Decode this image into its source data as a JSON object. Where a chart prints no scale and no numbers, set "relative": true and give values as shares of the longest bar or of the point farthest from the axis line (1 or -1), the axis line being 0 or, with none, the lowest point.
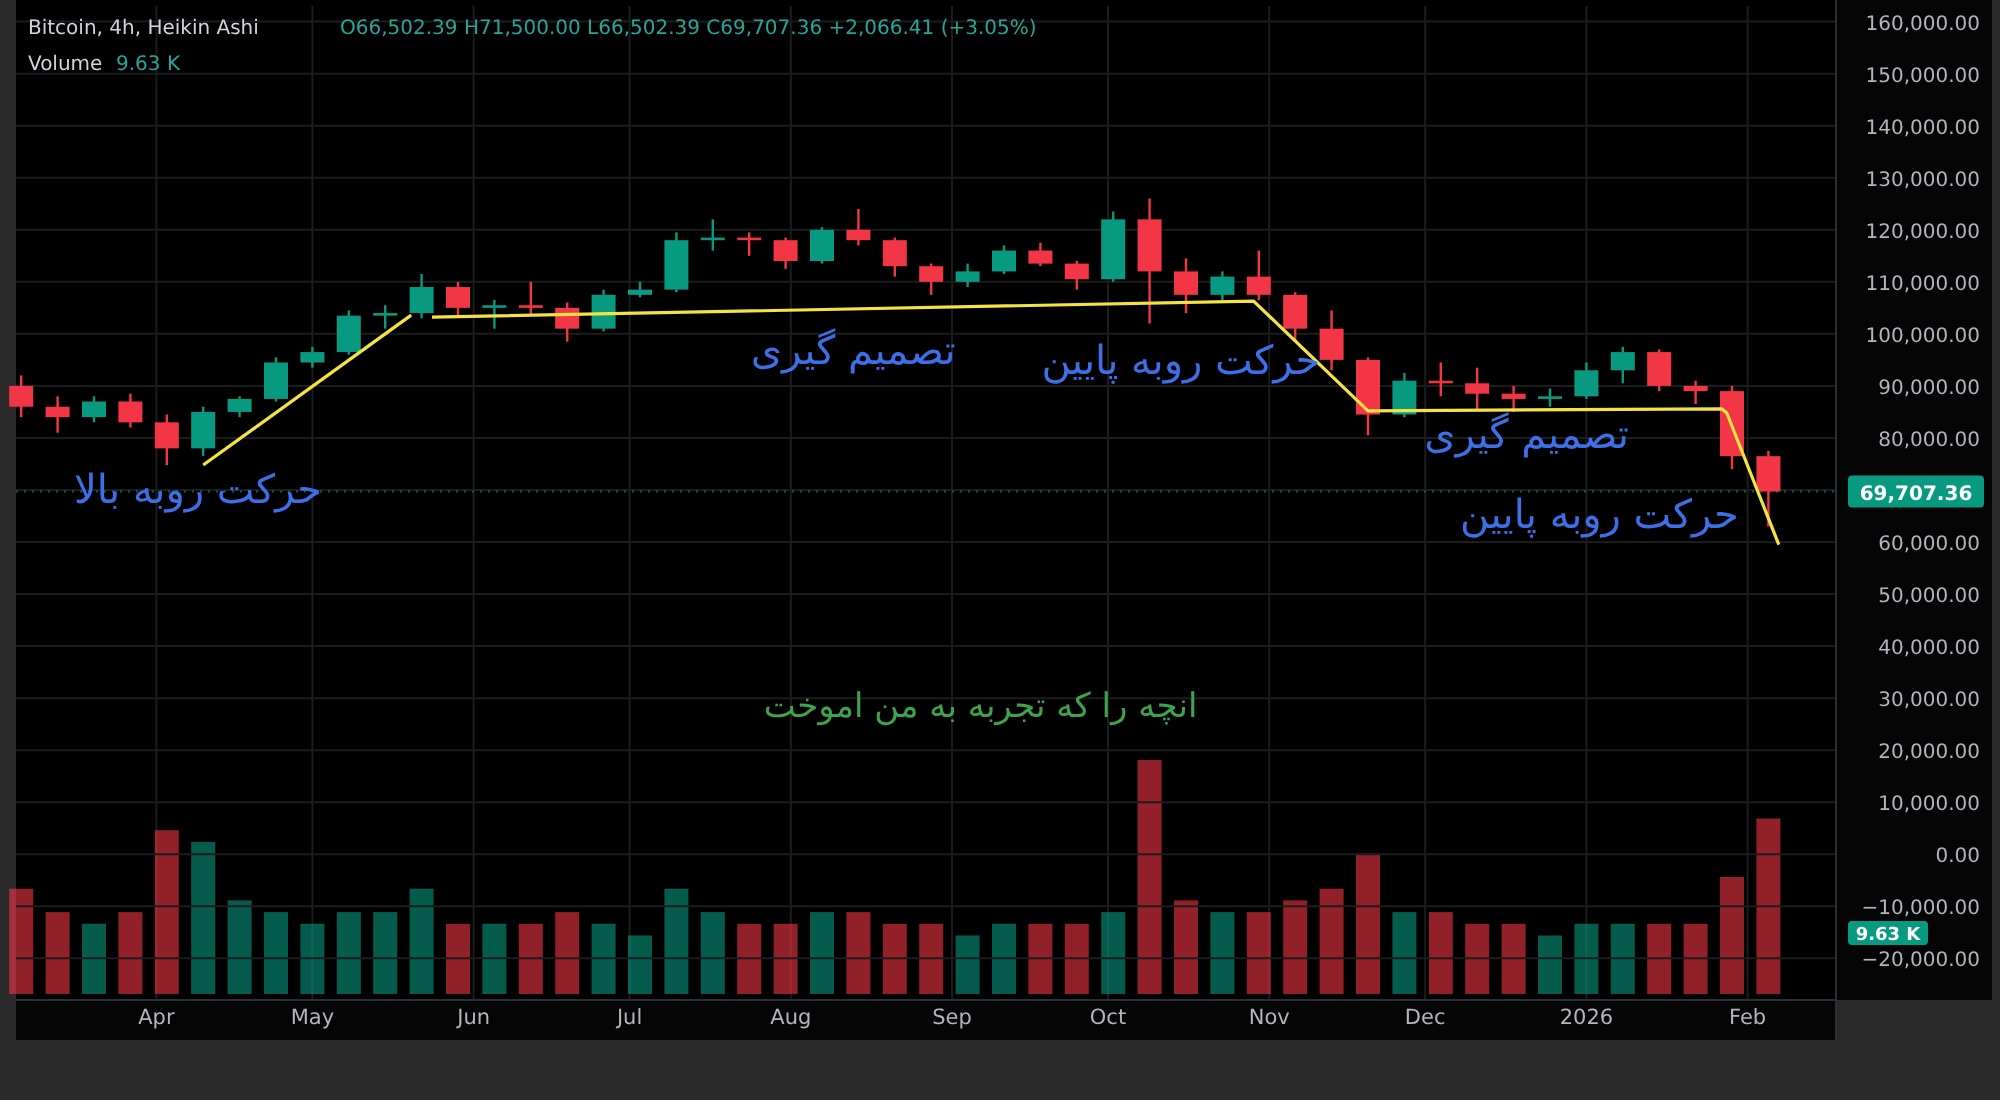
{
  "chart_data": [
    {
      "type": "candlestick",
      "title": "Bitcoin, 4h, Heikin Ashi",
      "subtitle": "O66,502.39  H71,500.00  L66,502.39  C69,707.36  +2,066.41 (+3.05%)",
      "x": [
        "2025-03-06",
        "2025-03-13",
        "2025-03-20",
        "2025-03-27",
        "2025-04-03",
        "2025-04-10",
        "2025-04-17",
        "2025-04-24",
        "2025-05-01",
        "2025-05-08",
        "2025-05-15",
        "2025-05-22",
        "2025-05-29",
        "2025-06-05",
        "2025-06-12",
        "2025-06-19",
        "2025-06-26",
        "2025-07-03",
        "2025-07-10",
        "2025-07-17",
        "2025-07-24",
        "2025-07-31",
        "2025-08-07",
        "2025-08-14",
        "2025-08-21",
        "2025-08-28",
        "2025-09-04",
        "2025-09-11",
        "2025-09-18",
        "2025-09-25",
        "2025-10-02",
        "2025-10-09",
        "2025-10-16",
        "2025-10-23",
        "2025-10-30",
        "2025-11-06",
        "2025-11-13",
        "2025-11-20",
        "2025-11-27",
        "2025-12-04",
        "2025-12-11",
        "2025-12-18",
        "2025-12-25",
        "2026-01-01",
        "2026-01-08",
        "2026-01-15",
        "2026-01-22",
        "2026-01-29",
        "2026-02-05"
      ],
      "ohlc": [
        [
          90000,
          92000,
          84000,
          86000
        ],
        [
          86000,
          88000,
          81000,
          84000
        ],
        [
          84000,
          88000,
          83000,
          87000
        ],
        [
          87000,
          88500,
          82000,
          83000
        ],
        [
          83000,
          84500,
          74800,
          78000
        ],
        [
          78000,
          86000,
          76500,
          85000
        ],
        [
          85000,
          88000,
          84000,
          87500
        ],
        [
          87500,
          95500,
          87000,
          94500
        ],
        [
          94500,
          97500,
          93500,
          96500
        ],
        [
          96500,
          104500,
          96000,
          103500
        ],
        [
          103500,
          105500,
          101000,
          104000
        ],
        [
          104000,
          111500,
          103000,
          109000
        ],
        [
          109000,
          110000,
          103500,
          105000
        ],
        [
          105000,
          106500,
          101000,
          105500
        ],
        [
          105500,
          110000,
          103500,
          105000
        ],
        [
          105000,
          106000,
          98500,
          101000
        ],
        [
          101000,
          108500,
          100500,
          107500
        ],
        [
          107500,
          110000,
          107000,
          108500
        ],
        [
          108500,
          119500,
          108000,
          118000
        ],
        [
          118000,
          122000,
          116000,
          118500
        ],
        [
          118500,
          119500,
          115000,
          118000
        ],
        [
          118000,
          118500,
          112500,
          114000
        ],
        [
          114000,
          120500,
          113500,
          120000
        ],
        [
          120000,
          124000,
          117000,
          118000
        ],
        [
          118000,
          118500,
          111000,
          113000
        ],
        [
          113000,
          113500,
          107500,
          110000
        ],
        [
          110000,
          113500,
          109000,
          112000
        ],
        [
          112000,
          117000,
          111500,
          116000
        ],
        [
          116000,
          117500,
          113000,
          113500
        ],
        [
          113500,
          114000,
          108500,
          110500
        ],
        [
          110500,
          123500,
          110000,
          122000
        ],
        [
          122000,
          126000,
          102000,
          112000
        ],
        [
          112000,
          114500,
          104000,
          107500
        ],
        [
          107500,
          112000,
          106500,
          111000
        ],
        [
          111000,
          116000,
          106500,
          107500
        ],
        [
          107500,
          108000,
          98500,
          101000
        ],
        [
          101000,
          104500,
          93000,
          95000
        ],
        [
          95000,
          95500,
          80500,
          84500
        ],
        [
          84500,
          92500,
          84000,
          91000
        ],
        [
          91000,
          94500,
          88000,
          90500
        ],
        [
          90500,
          93500,
          85500,
          88500
        ],
        [
          88500,
          90000,
          85000,
          87500
        ],
        [
          87500,
          89500,
          86000,
          88000
        ],
        [
          88000,
          94500,
          87500,
          93000
        ],
        [
          93000,
          97500,
          90500,
          96500
        ],
        [
          96500,
          97000,
          89000,
          90000
        ],
        [
          90000,
          91000,
          86500,
          89000
        ],
        [
          89000,
          90000,
          74000,
          76500
        ],
        [
          76500,
          77500,
          63000,
          69707.36
        ]
      ],
      "colors": [
        "#f23645",
        "#f23645",
        "#089981",
        "#f23645",
        "#f23645",
        "#089981",
        "#089981",
        "#089981",
        "#089981",
        "#089981",
        "#089981",
        "#089981",
        "#f23645",
        "#089981",
        "#f23645",
        "#f23645",
        "#089981",
        "#089981",
        "#089981",
        "#089981",
        "#f23645",
        "#f23645",
        "#089981",
        "#f23645",
        "#f23645",
        "#f23645",
        "#089981",
        "#089981",
        "#f23645",
        "#f23645",
        "#089981",
        "#f23645",
        "#f23645",
        "#089981",
        "#f23645",
        "#f23645",
        "#f23645",
        "#f23645",
        "#089981",
        "#f23645",
        "#f23645",
        "#f23645",
        "#089981",
        "#089981",
        "#089981",
        "#f23645",
        "#f23645",
        "#f23645",
        "#f23645"
      ],
      "series": [
        {
          "type": "line",
          "color": "#f5e342",
          "x": [
            "2025-04-10",
            "2025-05-20"
          ],
          "values": [
            74800,
            103600
          ]
        },
        {
          "type": "line",
          "color": "#f5e342",
          "x": [
            "2025-05-24",
            "2025-10-29",
            "2025-11-20",
            "2026-01-27",
            "2026-01-28",
            "2026-02-07"
          ],
          "values": [
            103200,
            106300,
            85200,
            85600,
            84800,
            59500
          ]
        }
      ],
      "ref_lines": [
        {
          "axis": "y",
          "value": 69707.36,
          "label": "69,707.36",
          "color": "#089981",
          "line_style": "dotted"
        }
      ],
      "annotations": [
        "حرکت روبه بالا",
        "تصمیم گیری",
        "حرکت روبه پایین",
        "تصمیم گیری",
        "حرکت روبه پایین",
        "انچه را که تجربه به من اموخت"
      ],
      "xlim": [
        "2025-03-05",
        "2026-02-18"
      ],
      "ylim": [
        -28000,
        163000
      ],
      "yticks": [
        {
          "value": 160000,
          "label": "160,000.00"
        },
        {
          "value": 150000,
          "label": "150,000.00"
        },
        {
          "value": 140000,
          "label": "140,000.00"
        },
        {
          "value": 130000,
          "label": "130,000.00"
        },
        {
          "value": 120000,
          "label": "120,000.00"
        },
        {
          "value": 110000,
          "label": "110,000.00"
        },
        {
          "value": 100000,
          "label": "100,000.00"
        },
        {
          "value": 90000,
          "label": "90,000.00"
        },
        {
          "value": 80000,
          "label": "80,000.00"
        },
        {
          "value": 70000,
          "label": null
        },
        {
          "value": 60000,
          "label": "60,000.00"
        },
        {
          "value": 50000,
          "label": "50,000.00"
        },
        {
          "value": 40000,
          "label": "40,000.00"
        },
        {
          "value": 30000,
          "label": "30,000.00"
        },
        {
          "value": 20000,
          "label": "20,000.00"
        },
        {
          "value": 10000,
          "label": "10,000.00"
        },
        {
          "value": 0,
          "label": "0.00"
        },
        {
          "value": -10000,
          "label": "−10,000.00"
        },
        {
          "value": -20000,
          "label": "−20,000.00"
        }
      ],
      "tick_labels": "y",
      "grid": true
    },
    {
      "type": "bar",
      "title": "Volume",
      "relative": true,
      "x": [
        "2025-03-06",
        "2025-03-13",
        "2025-03-20",
        "2025-03-27",
        "2025-04-03",
        "2025-04-10",
        "2025-04-17",
        "2025-04-24",
        "2025-05-01",
        "2025-05-08",
        "2025-05-15",
        "2025-05-22",
        "2025-05-29",
        "2025-06-05",
        "2025-06-12",
        "2025-06-19",
        "2025-06-26",
        "2025-07-03",
        "2025-07-10",
        "2025-07-17",
        "2025-07-24",
        "2025-07-31",
        "2025-08-07",
        "2025-08-14",
        "2025-08-21",
        "2025-08-28",
        "2025-09-04",
        "2025-09-11",
        "2025-09-18",
        "2025-09-25",
        "2025-10-02",
        "2025-10-09",
        "2025-10-16",
        "2025-10-23",
        "2025-10-30",
        "2025-11-06",
        "2025-11-13",
        "2025-11-20",
        "2025-11-27",
        "2025-12-04",
        "2025-12-11",
        "2025-12-18",
        "2025-12-25",
        "2026-01-01",
        "2026-01-08",
        "2026-01-15",
        "2026-01-22",
        "2026-01-29",
        "2026-02-05"
      ],
      "values": [
        0.45,
        0.35,
        0.3,
        0.35,
        0.7,
        0.65,
        0.4,
        0.35,
        0.3,
        0.35,
        0.35,
        0.45,
        0.3,
        0.3,
        0.3,
        0.35,
        0.3,
        0.25,
        0.45,
        0.35,
        0.3,
        0.3,
        0.35,
        0.35,
        0.3,
        0.3,
        0.25,
        0.3,
        0.3,
        0.3,
        0.35,
        1.0,
        0.4,
        0.35,
        0.35,
        0.4,
        0.45,
        0.6,
        0.35,
        0.35,
        0.3,
        0.3,
        0.25,
        0.3,
        0.3,
        0.3,
        0.3,
        0.5,
        0.75
      ],
      "colors": [
        "#f23645",
        "#f23645",
        "#089981",
        "#f23645",
        "#f23645",
        "#089981",
        "#089981",
        "#089981",
        "#089981",
        "#089981",
        "#089981",
        "#089981",
        "#f23645",
        "#089981",
        "#f23645",
        "#f23645",
        "#089981",
        "#089981",
        "#089981",
        "#089981",
        "#f23645",
        "#f23645",
        "#089981",
        "#f23645",
        "#f23645",
        "#f23645",
        "#089981",
        "#089981",
        "#f23645",
        "#f23645",
        "#089981",
        "#f23645",
        "#f23645",
        "#089981",
        "#f23645",
        "#f23645",
        "#f23645",
        "#f23645",
        "#089981",
        "#f23645",
        "#f23645",
        "#f23645",
        "#089981",
        "#089981",
        "#089981",
        "#f23645",
        "#f23645",
        "#f23645",
        "#f23645"
      ],
      "annotations": [
        "9.63 K"
      ],
      "xlim": [
        "2025-03-05",
        "2026-02-18"
      ],
      "xticks": [
        {
          "value": "2025-04-01",
          "label": "Apr"
        },
        {
          "value": "2025-05-01",
          "label": "May"
        },
        {
          "value": "2025-06-01",
          "label": "Jun"
        },
        {
          "value": "2025-07-01",
          "label": "Jul"
        },
        {
          "value": "2025-08-01",
          "label": "Aug"
        },
        {
          "value": "2025-09-01",
          "label": "Sep"
        },
        {
          "value": "2025-10-01",
          "label": "Oct"
        },
        {
          "value": "2025-11-01",
          "label": "Nov"
        },
        {
          "value": "2025-12-01",
          "label": "Dec"
        },
        {
          "value": "2026-01-01",
          "label": "2026"
        },
        {
          "value": "2026-02-01",
          "label": "Feb"
        }
      ],
      "tick_labels": "x",
      "grid": "x"
    }
  ]
}
